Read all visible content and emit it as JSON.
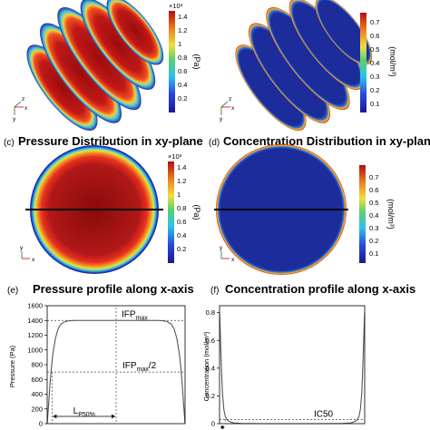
{
  "panels": {
    "a": {
      "colorbar": {
        "ticks": [
          "0.2",
          "0.4",
          "0.6",
          "0.8",
          "1",
          "1.2",
          "1.4"
        ],
        "exponent": "×10³",
        "unit": "(Pa)"
      },
      "axes_triad": [
        "z",
        "x",
        "y"
      ]
    },
    "b": {
      "colorbar": {
        "ticks": [
          "0.1",
          "0.2",
          "0.3",
          "0.4",
          "0.5",
          "0.6",
          "0.7"
        ],
        "unit": "(mol/m³)"
      },
      "axes_triad": [
        "z",
        "x",
        "y"
      ]
    },
    "c": {
      "label": "(c)",
      "title": "Pressure Distribution in xy-plane",
      "colorbar": {
        "ticks": [
          "0.2",
          "0.4",
          "0.6",
          "0.8",
          "1",
          "1.2",
          "1.4"
        ],
        "exponent": "×10³",
        "unit": "(Pa)"
      },
      "axes_triad": [
        "y",
        "x"
      ]
    },
    "d": {
      "label": "(d)",
      "title": "Concentration Distribution in xy-plane",
      "colorbar": {
        "ticks": [
          "0.1",
          "0.2",
          "0.3",
          "0.4",
          "0.5",
          "0.6",
          "0.7"
        ],
        "unit": "(mol/m³)"
      },
      "axes_triad": [
        "y",
        "x"
      ]
    },
    "e": {
      "label": "(e)",
      "title": "Pressure profile along x-axis"
    },
    "f": {
      "label": "(f)",
      "title": "Concentration profile along x-axis"
    }
  },
  "chart_data": [
    {
      "type": "line",
      "panel": "e",
      "title": "Pressure profile along x-axis",
      "xlabel": "",
      "ylabel": "Pressure (Pa)",
      "ylim": [
        0,
        1600
      ],
      "yticks": [
        0,
        200,
        400,
        600,
        800,
        1000,
        1200,
        1400,
        1600
      ],
      "xlim": [
        0,
        1
      ],
      "x": [
        0,
        0.01,
        0.02,
        0.03,
        0.04,
        0.06,
        0.08,
        0.1,
        0.13,
        0.16,
        0.2,
        0.25,
        0.3,
        0.4,
        0.5,
        0.6,
        0.7,
        0.75,
        0.8,
        0.84,
        0.87,
        0.9,
        0.92,
        0.94,
        0.96,
        0.97,
        0.98,
        0.99,
        1
      ],
      "y": [
        0,
        250,
        520,
        750,
        930,
        1160,
        1290,
        1350,
        1385,
        1396,
        1400,
        1400,
        1400,
        1400,
        1400,
        1400,
        1400,
        1400,
        1400,
        1396,
        1385,
        1350,
        1290,
        1160,
        930,
        750,
        520,
        250,
        0
      ],
      "annotations": [
        {
          "text": "IFP",
          "sub": "max",
          "level": 1400
        },
        {
          "text": "IFP",
          "sub": "max",
          "suffix": "/2",
          "level": 700
        },
        {
          "text": "L",
          "sub": "P50%"
        }
      ]
    },
    {
      "type": "line",
      "panel": "f",
      "title": "Concentration profile along x-axis",
      "xlabel": "",
      "ylabel": "Concentration (mol/m³)",
      "ylim": [
        0,
        0.85
      ],
      "yticks": [
        0,
        0.2,
        0.4,
        0.6,
        0.8
      ],
      "xlim": [
        0,
        1
      ],
      "x": [
        0,
        0.005,
        0.01,
        0.015,
        0.02,
        0.03,
        0.04,
        0.05,
        0.06,
        0.08,
        0.1,
        0.15,
        0.3,
        0.5,
        0.7,
        0.85,
        0.9,
        0.92,
        0.94,
        0.95,
        0.96,
        0.97,
        0.98,
        0.985,
        0.99,
        0.995,
        1
      ],
      "y": [
        0.8,
        0.66,
        0.5,
        0.35,
        0.22,
        0.1,
        0.05,
        0.03,
        0.02,
        0.01,
        0.005,
        0.001,
        0,
        0,
        0,
        0.001,
        0.005,
        0.01,
        0.02,
        0.03,
        0.05,
        0.1,
        0.22,
        0.35,
        0.5,
        0.66,
        0.8
      ],
      "annotations": [
        {
          "text": "IC50",
          "level": 0.03
        }
      ]
    }
  ]
}
